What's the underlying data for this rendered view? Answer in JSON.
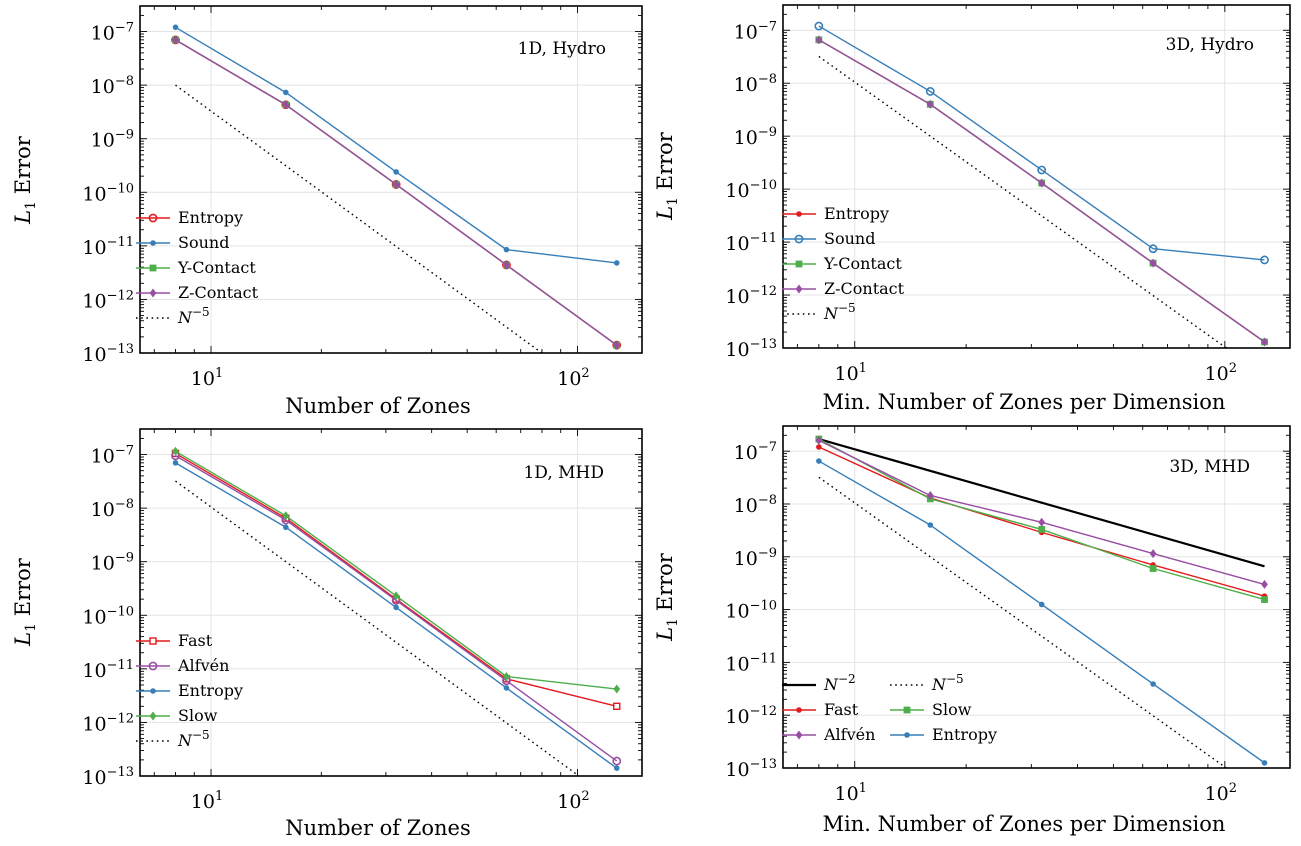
{
  "colors": {
    "red": "#e41a1c",
    "blue": "#377eb8",
    "green": "#4daf4a",
    "purple": "#984ea3",
    "black": "#000000",
    "grid": "#e3e3e3"
  },
  "chart_data": [
    {
      "type": "line",
      "annotation": "1D, Hydro",
      "xlabel": "Number of Zones",
      "ylabel": "L1 Error",
      "xscale": "log",
      "yscale": "log",
      "xlim": [
        6.4,
        150
      ],
      "ylim": [
        1e-13,
        3e-07
      ],
      "grid": true,
      "legend_position": "bottom-left",
      "x_ticks": [
        {
          "value": 10,
          "label": "10",
          "exp": "1"
        },
        {
          "value": 100,
          "label": "10",
          "exp": "2"
        }
      ],
      "y_ticks": [
        {
          "value": 1e-07,
          "label": "10",
          "exp": "−7"
        },
        {
          "value": 1e-08,
          "label": "10",
          "exp": "−8"
        },
        {
          "value": 1e-09,
          "label": "10",
          "exp": "−9"
        },
        {
          "value": 1e-10,
          "label": "10",
          "exp": "−10"
        },
        {
          "value": 1e-11,
          "label": "10",
          "exp": "−11"
        },
        {
          "value": 1e-12,
          "label": "10",
          "exp": "−12"
        },
        {
          "value": 1e-13,
          "label": "10",
          "exp": "−13"
        }
      ],
      "series": [
        {
          "name": "Entropy",
          "color": "#e41a1c",
          "marker": "circle-open",
          "x": [
            8,
            16,
            32,
            64,
            128
          ],
          "y": [
            7e-08,
            4.3e-09,
            1.4e-10,
            4.4e-12,
            1.4e-13
          ]
        },
        {
          "name": "Sound",
          "color": "#377eb8",
          "marker": "dot",
          "x": [
            8,
            16,
            32,
            64,
            128
          ],
          "y": [
            1.2e-07,
            7.3e-09,
            2.4e-10,
            8.5e-12,
            4.8e-12
          ]
        },
        {
          "name": "Y-Contact",
          "color": "#4daf4a",
          "marker": "square",
          "x": [
            8,
            16,
            32,
            64,
            128
          ],
          "y": [
            7e-08,
            4.3e-09,
            1.4e-10,
            4.4e-12,
            1.4e-13
          ]
        },
        {
          "name": "Z-Contact",
          "color": "#984ea3",
          "marker": "diamond",
          "x": [
            8,
            16,
            32,
            64,
            128
          ],
          "y": [
            7e-08,
            4.3e-09,
            1.4e-10,
            4.4e-12,
            1.4e-13
          ]
        },
        {
          "name": "N",
          "name_sup": "−5",
          "color": "#000000",
          "dash": "dotted",
          "marker": "none",
          "x": [
            8,
            128
          ],
          "y": [
            1e-08,
            9.5e-15
          ]
        }
      ]
    },
    {
      "type": "line",
      "annotation": "3D, Hydro",
      "xlabel": "Min. Number of Zones per Dimension",
      "ylabel": "L1 Error",
      "xscale": "log",
      "yscale": "log",
      "xlim": [
        6.4,
        150
      ],
      "ylim": [
        1e-13,
        3e-07
      ],
      "grid": true,
      "legend_position": "bottom-left",
      "x_ticks": [
        {
          "value": 10,
          "label": "10",
          "exp": "1"
        },
        {
          "value": 100,
          "label": "10",
          "exp": "2"
        }
      ],
      "y_ticks": [
        {
          "value": 1e-07,
          "label": "10",
          "exp": "−7"
        },
        {
          "value": 1e-08,
          "label": "10",
          "exp": "−8"
        },
        {
          "value": 1e-09,
          "label": "10",
          "exp": "−9"
        },
        {
          "value": 1e-10,
          "label": "10",
          "exp": "−10"
        },
        {
          "value": 1e-11,
          "label": "10",
          "exp": "−11"
        },
        {
          "value": 1e-12,
          "label": "10",
          "exp": "−12"
        },
        {
          "value": 1e-13,
          "label": "10",
          "exp": "−13"
        }
      ],
      "series": [
        {
          "name": "Entropy",
          "color": "#e41a1c",
          "marker": "dot",
          "x": [
            8,
            16,
            32,
            64,
            128
          ],
          "y": [
            6.6e-08,
            4e-09,
            1.3e-10,
            4e-12,
            1.3e-13
          ]
        },
        {
          "name": "Sound",
          "color": "#377eb8",
          "marker": "circle-open",
          "x": [
            8,
            16,
            32,
            64,
            128
          ],
          "y": [
            1.2e-07,
            7e-09,
            2.3e-10,
            7.5e-12,
            4.6e-12
          ]
        },
        {
          "name": "Y-Contact",
          "color": "#4daf4a",
          "marker": "square",
          "x": [
            8,
            16,
            32,
            64,
            128
          ],
          "y": [
            6.6e-08,
            4e-09,
            1.3e-10,
            4e-12,
            1.3e-13
          ]
        },
        {
          "name": "Z-Contact",
          "color": "#984ea3",
          "marker": "diamond",
          "x": [
            8,
            16,
            32,
            64,
            128
          ],
          "y": [
            6.6e-08,
            4e-09,
            1.3e-10,
            4e-12,
            1.3e-13
          ]
        },
        {
          "name": "N",
          "name_sup": "−5",
          "color": "#000000",
          "dash": "dotted",
          "marker": "none",
          "x": [
            8,
            128
          ],
          "y": [
            3.2e-08,
            3.05e-14
          ]
        }
      ]
    },
    {
      "type": "line",
      "annotation": "1D, MHD",
      "xlabel": "Number of Zones",
      "ylabel": "L1 Error",
      "xscale": "log",
      "yscale": "log",
      "xlim": [
        6.4,
        150
      ],
      "ylim": [
        1e-13,
        3e-07
      ],
      "grid": true,
      "legend_position": "bottom-left",
      "x_ticks": [
        {
          "value": 10,
          "label": "10",
          "exp": "1"
        },
        {
          "value": 100,
          "label": "10",
          "exp": "2"
        }
      ],
      "y_ticks": [
        {
          "value": 1e-07,
          "label": "10",
          "exp": "−7"
        },
        {
          "value": 1e-08,
          "label": "10",
          "exp": "−8"
        },
        {
          "value": 1e-09,
          "label": "10",
          "exp": "−9"
        },
        {
          "value": 1e-10,
          "label": "10",
          "exp": "−10"
        },
        {
          "value": 1e-11,
          "label": "10",
          "exp": "−11"
        },
        {
          "value": 1e-12,
          "label": "10",
          "exp": "−12"
        },
        {
          "value": 1e-13,
          "label": "10",
          "exp": "−13"
        }
      ],
      "series": [
        {
          "name": "Fast",
          "color": "#e41a1c",
          "marker": "square-open",
          "x": [
            8,
            16,
            32,
            64,
            128
          ],
          "y": [
            1.05e-07,
            6.5e-09,
            2e-10,
            6.5e-12,
            2e-12
          ]
        },
        {
          "name": "Alfvén",
          "color": "#984ea3",
          "marker": "circle-open",
          "x": [
            8,
            16,
            32,
            64,
            128
          ],
          "y": [
            9.5e-08,
            6e-09,
            1.9e-10,
            6e-12,
            1.9e-13
          ]
        },
        {
          "name": "Entropy",
          "color": "#377eb8",
          "marker": "dot",
          "x": [
            8,
            16,
            32,
            64,
            128
          ],
          "y": [
            7e-08,
            4.4e-09,
            1.4e-10,
            4.4e-12,
            1.4e-13
          ]
        },
        {
          "name": "Slow",
          "color": "#4daf4a",
          "marker": "diamond",
          "x": [
            8,
            16,
            32,
            64,
            128
          ],
          "y": [
            1.15e-07,
            7.2e-09,
            2.3e-10,
            7.2e-12,
            4.2e-12
          ]
        },
        {
          "name": "N",
          "name_sup": "−5",
          "color": "#000000",
          "dash": "dotted",
          "marker": "none",
          "x": [
            8,
            128
          ],
          "y": [
            3.2e-08,
            3.05e-14
          ]
        }
      ]
    },
    {
      "type": "line",
      "annotation": "3D, MHD",
      "xlabel": "Min. Number of Zones per Dimension",
      "ylabel": "L1 Error",
      "xscale": "log",
      "yscale": "log",
      "xlim": [
        6.4,
        150
      ],
      "ylim": [
        1e-13,
        3e-07
      ],
      "grid": true,
      "legend_position": "bottom-left",
      "legend_columns": 2,
      "x_ticks": [
        {
          "value": 10,
          "label": "10",
          "exp": "1"
        },
        {
          "value": 100,
          "label": "10",
          "exp": "2"
        }
      ],
      "y_ticks": [
        {
          "value": 1e-07,
          "label": "10",
          "exp": "−7"
        },
        {
          "value": 1e-08,
          "label": "10",
          "exp": "−8"
        },
        {
          "value": 1e-09,
          "label": "10",
          "exp": "−9"
        },
        {
          "value": 1e-10,
          "label": "10",
          "exp": "−10"
        },
        {
          "value": 1e-11,
          "label": "10",
          "exp": "−11"
        },
        {
          "value": 1e-12,
          "label": "10",
          "exp": "−12"
        },
        {
          "value": 1e-13,
          "label": "10",
          "exp": "−13"
        }
      ],
      "series": [
        {
          "name": "N",
          "name_sup": "−2",
          "color": "#000000",
          "dash": "solid",
          "width": 2.2,
          "marker": "none",
          "x": [
            8,
            128
          ],
          "y": [
            1.7e-07,
            6.6e-10
          ]
        },
        {
          "name": "N",
          "name_sup": "−5",
          "color": "#000000",
          "dash": "dotted",
          "marker": "none",
          "x": [
            8,
            128
          ],
          "y": [
            3.2e-08,
            3.05e-14
          ]
        },
        {
          "name": "Fast",
          "color": "#e41a1c",
          "marker": "dot",
          "x": [
            8,
            16,
            32,
            64,
            128
          ],
          "y": [
            1.2e-07,
            1.3e-08,
            2.9e-09,
            7e-10,
            1.8e-10
          ]
        },
        {
          "name": "Slow",
          "color": "#4daf4a",
          "marker": "square",
          "x": [
            8,
            16,
            32,
            64,
            128
          ],
          "y": [
            1.7e-07,
            1.25e-08,
            3.3e-09,
            6e-10,
            1.55e-10
          ]
        },
        {
          "name": "Alfvén",
          "color": "#984ea3",
          "marker": "diamond",
          "x": [
            8,
            16,
            32,
            64,
            128
          ],
          "y": [
            1.6e-07,
            1.45e-08,
            4.5e-09,
            1.15e-09,
            3e-10
          ]
        },
        {
          "name": "Entropy",
          "color": "#377eb8",
          "marker": "dot",
          "x": [
            8,
            16,
            32,
            64,
            128
          ],
          "y": [
            6.5e-08,
            4e-09,
            1.25e-10,
            3.9e-12,
            1.25e-13
          ]
        }
      ]
    }
  ]
}
